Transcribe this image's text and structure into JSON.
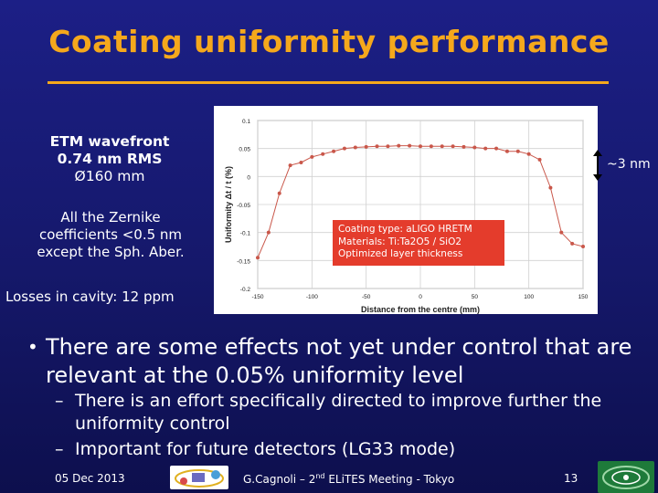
{
  "slide": {
    "title": "Coating uniformity performance",
    "etm_title": "ETM wavefront",
    "etm_rms": "0.74 nm RMS",
    "etm_diameter": "Ø160 mm",
    "zernike_note": [
      "All the Zernike",
      "coefficients <0.5 nm",
      "except the Sph. Aber."
    ],
    "losses": "Losses in cavity: 12 ppm",
    "nm_annotation": "~3 nm",
    "callout": [
      "Coating type: aLIGO HRETM",
      "Materials: Ti:Ta2O5 / SiO2",
      "Optimized layer thickness"
    ],
    "bullet": "There are some effects not yet under control that are relevant at the 0.05% uniformity level",
    "subbullets": [
      "There is an effort specifically directed to improve further the uniformity control",
      "Important for future detectors (LG33 mode)"
    ]
  },
  "footer": {
    "date": "05 Dec 2013",
    "author_prefix": "G.Cagnoli – 2",
    "author_sup": "nd",
    "author_suffix": " ELiTES Meeting - Tokyo",
    "page": "13"
  },
  "chart_data": {
    "type": "line",
    "xlabel": "Distance from the centre (mm)",
    "ylabel": "Uniformity  Δt / t (%)",
    "xlim": [
      -150,
      150
    ],
    "ylim": [
      -0.2,
      0.1
    ],
    "xticks": [
      -150,
      -100,
      -50,
      0,
      50,
      100,
      150
    ],
    "yticks": [
      0.1,
      0.05,
      0,
      -0.05,
      -0.1,
      -0.15,
      -0.2
    ],
    "series": [
      {
        "color": "#c9574a",
        "x": [
          -150,
          -140,
          -130,
          -120,
          -110,
          -100,
          -90,
          -80,
          -70,
          -60,
          -50,
          -40,
          -30,
          -20,
          -10,
          0,
          10,
          20,
          30,
          40,
          50,
          60,
          70,
          80,
          90,
          100,
          110,
          120,
          130,
          140,
          150
        ],
        "y": [
          -0.145,
          -0.1,
          -0.03,
          0.02,
          0.025,
          0.035,
          0.04,
          0.045,
          0.05,
          0.052,
          0.053,
          0.054,
          0.054,
          0.055,
          0.055,
          0.054,
          0.054,
          0.054,
          0.054,
          0.053,
          0.052,
          0.05,
          0.05,
          0.045,
          0.045,
          0.04,
          0.03,
          -0.02,
          -0.1,
          -0.12,
          -0.125
        ]
      }
    ]
  }
}
